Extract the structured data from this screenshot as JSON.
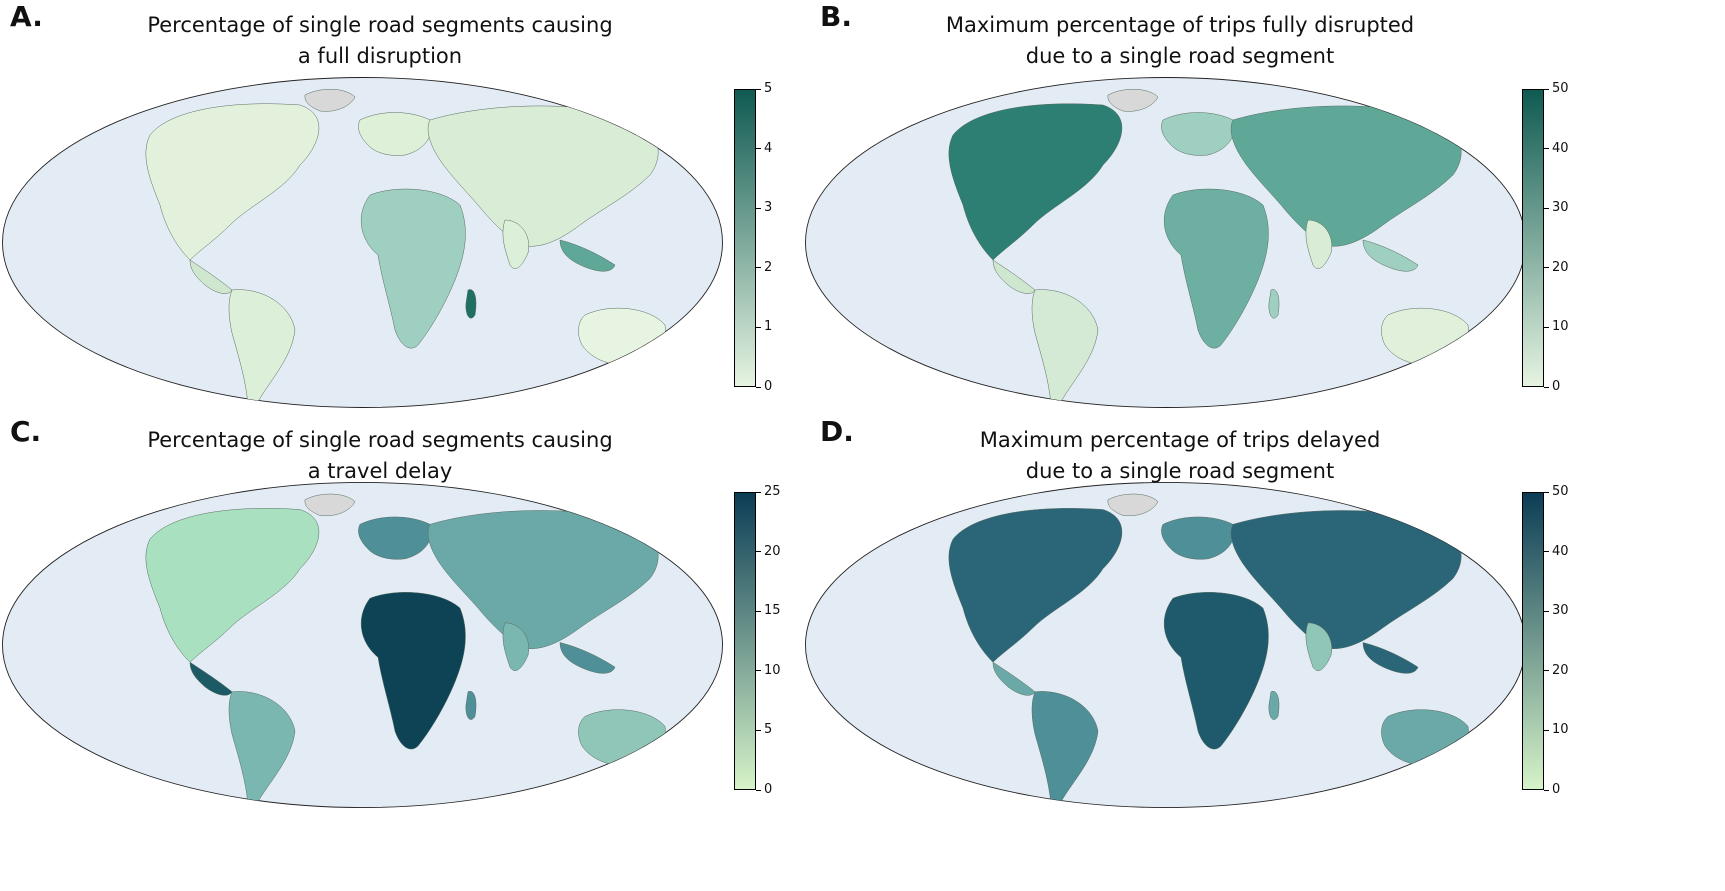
{
  "panels": [
    {
      "letter": "A.",
      "title_line1": "Percentage of single road segments causing",
      "title_line2": "a full disruption",
      "colorbar": {
        "ticks": [
          "0",
          "1",
          "2",
          "3",
          "4",
          "5"
        ],
        "min_color": "#e6f4e1",
        "max_color": "#0f5a52"
      }
    },
    {
      "letter": "B.",
      "title_line1": "Maximum percentage of trips fully disrupted",
      "title_line2": "due to a single road segment",
      "colorbar": {
        "ticks": [
          "0",
          "10",
          "20",
          "30",
          "40",
          "50"
        ],
        "min_color": "#e6f4e1",
        "max_color": "#0f5a52"
      }
    },
    {
      "letter": "C.",
      "title_line1": "Percentage of single road segments causing",
      "title_line2": "a travel delay",
      "colorbar": {
        "ticks": [
          "0",
          "5",
          "10",
          "15",
          "20",
          "25"
        ],
        "min_color": "#d6f3c8",
        "max_color": "#0b3d55"
      }
    },
    {
      "letter": "D.",
      "title_line1": "Maximum percentage of trips delayed",
      "title_line2": "due to a single road segment",
      "colorbar": {
        "ticks": [
          "0",
          "10",
          "20",
          "30",
          "40",
          "50"
        ],
        "min_color": "#d6f3c8",
        "max_color": "#0b3d55"
      }
    }
  ],
  "colors": {
    "ocean": "#e3ebf4",
    "greenland": "#d8d8d8"
  }
}
